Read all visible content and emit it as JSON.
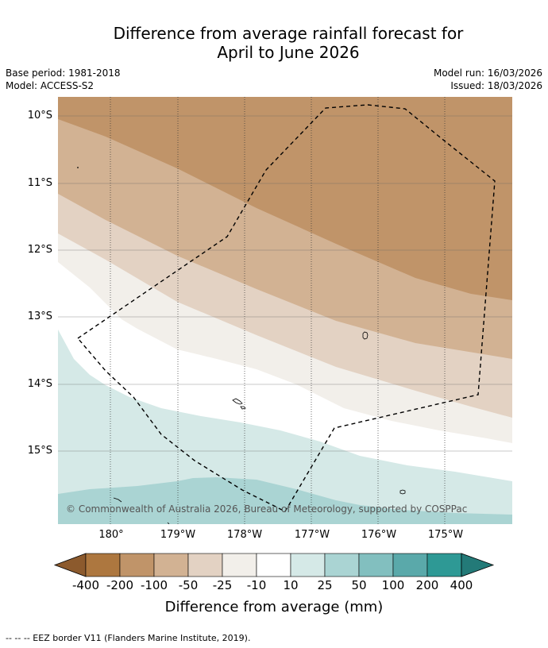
{
  "title": {
    "line1": "Difference from average rainfall forecast for",
    "line2": "April to June 2026"
  },
  "meta": {
    "base_period": "Base period: 1981-2018",
    "model": "Model: ACCESS-S2",
    "model_run": "Model run: 16/03/2026",
    "issued": "Issued: 18/03/2026"
  },
  "map": {
    "lat_labels": [
      "10°S",
      "11°S",
      "12°S",
      "13°S",
      "14°S",
      "15°S"
    ],
    "lon_labels": [
      "180°",
      "179°W",
      "178°W",
      "177°W",
      "176°W",
      "175°W"
    ],
    "copyright": "© Commonwealth of Australia 2026, Bureau of Meteorology, supported by COSPPac"
  },
  "colorbar": {
    "labels": [
      "-400",
      "-200",
      "-100",
      "-50",
      "-25",
      "-10",
      "10",
      "25",
      "50",
      "100",
      "200",
      "400"
    ],
    "colors": [
      "#8c5a2d",
      "#ad773f",
      "#c09469",
      "#d2b293",
      "#e3d2c3",
      "#f2efea",
      "#ffffff",
      "#d5e9e7",
      "#aad4d3",
      "#82bfbf",
      "#5aa9aa",
      "#2e9995",
      "#237a78"
    ],
    "title": "Difference from average (mm)"
  },
  "footer": "--  --  -- EEZ border V11 (Flanders Marine Institute, 2019)."
}
